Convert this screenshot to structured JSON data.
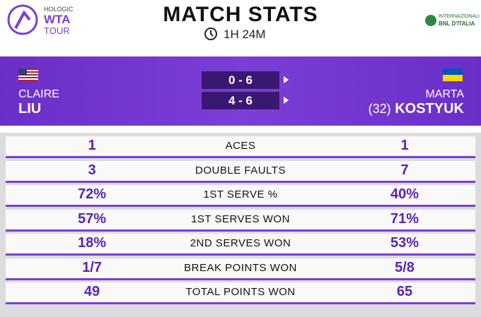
{
  "header": {
    "brand": [
      "HOLOGIC",
      "WTA",
      "TOUR"
    ],
    "title": "MATCH STATS",
    "duration": "1H 24M",
    "sponsor": [
      "INTERNAZIONALI",
      "BNL D'ITALIA"
    ]
  },
  "players": [
    {
      "first_name": "CLAIRE",
      "last_name": "LIU"
    },
    {
      "first_name": "MARTA",
      "seed": "(32)",
      "last_name": "KOSTYUK"
    }
  ],
  "sets": [
    "0 - 6",
    "4 - 6"
  ],
  "stats": [
    [
      "1",
      "ACES",
      "1"
    ],
    [
      "3",
      "DOUBLE FAULTS",
      "7"
    ],
    [
      "72%",
      "1ST SERVE %",
      "40%"
    ],
    [
      "57%",
      "1ST SERVES WON",
      "71%"
    ],
    [
      "18%",
      "2ND SERVES WON",
      "53%"
    ],
    [
      "1/7",
      "BREAK POINTS WON",
      "5/8"
    ],
    [
      "49",
      "TOTAL POINTS WON",
      "65"
    ]
  ]
}
